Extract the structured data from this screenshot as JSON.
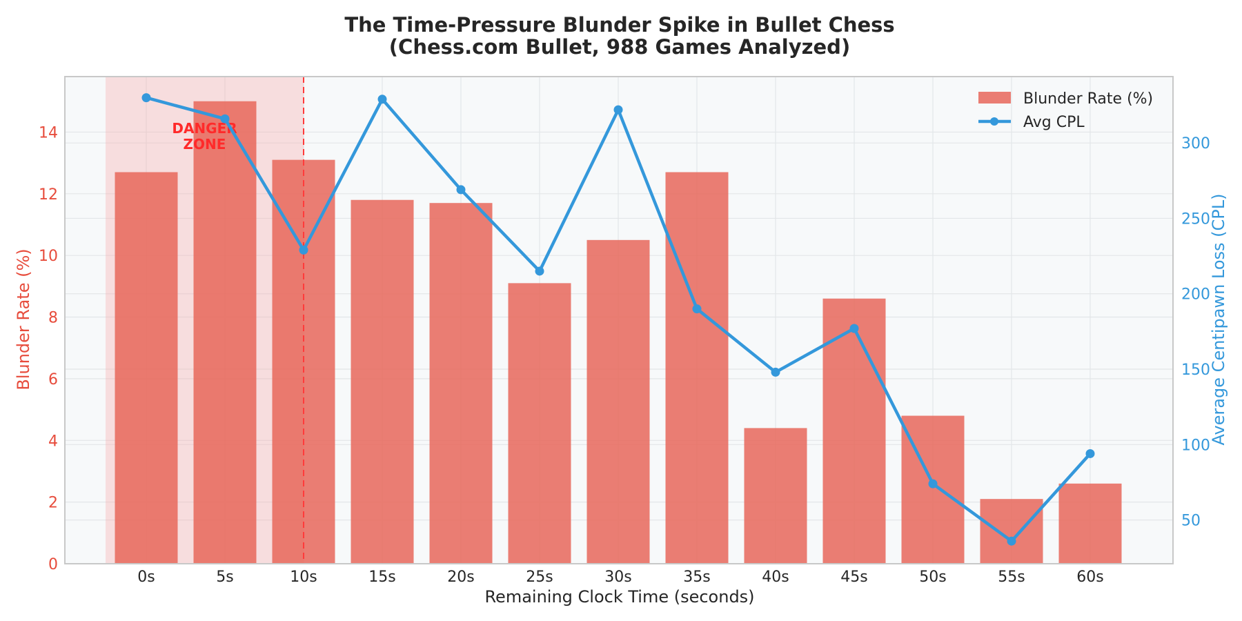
{
  "chart_data": {
    "type": "bar",
    "title_line1": "The Time-Pressure Blunder Spike in Bullet Chess",
    "title_line2": "(Chess.com Bullet, 988 Games Analyzed)",
    "xlabel": "Remaining Clock Time (seconds)",
    "ylabel": "Blunder Rate (%)",
    "y2label": "Average Centipawn Loss (CPL)",
    "categories": [
      "0s",
      "5s",
      "10s",
      "15s",
      "20s",
      "25s",
      "30s",
      "35s",
      "40s",
      "45s",
      "50s",
      "55s",
      "60s"
    ],
    "series": [
      {
        "name": "Blunder Rate (%)",
        "type": "bar",
        "axis": "left",
        "color": "#e8675a",
        "values": [
          12.7,
          15.0,
          13.1,
          11.8,
          11.7,
          9.1,
          10.5,
          12.7,
          4.4,
          8.6,
          4.8,
          2.1,
          2.6
        ]
      },
      {
        "name": "Avg CPL",
        "type": "line",
        "axis": "right",
        "color": "#3498db",
        "values": [
          330,
          316,
          229,
          329,
          269,
          215,
          322,
          190,
          148,
          177,
          74,
          36,
          94
        ]
      }
    ],
    "ylim": [
      0,
      15.8
    ],
    "y2lim": [
      21,
      344
    ],
    "yticks": [
      0,
      2,
      4,
      6,
      8,
      10,
      12,
      14
    ],
    "y2ticks": [
      50,
      100,
      150,
      200,
      250,
      300
    ],
    "annotation": {
      "text_line1": "DANGER",
      "text_line2": "ZONE",
      "region_start": "0s",
      "region_end": "10s"
    },
    "danger_color": "#f5a9a9",
    "left_axis_color": "#e74c3c",
    "right_axis_color": "#3498db",
    "legend_position": "top-right",
    "grid": true
  }
}
